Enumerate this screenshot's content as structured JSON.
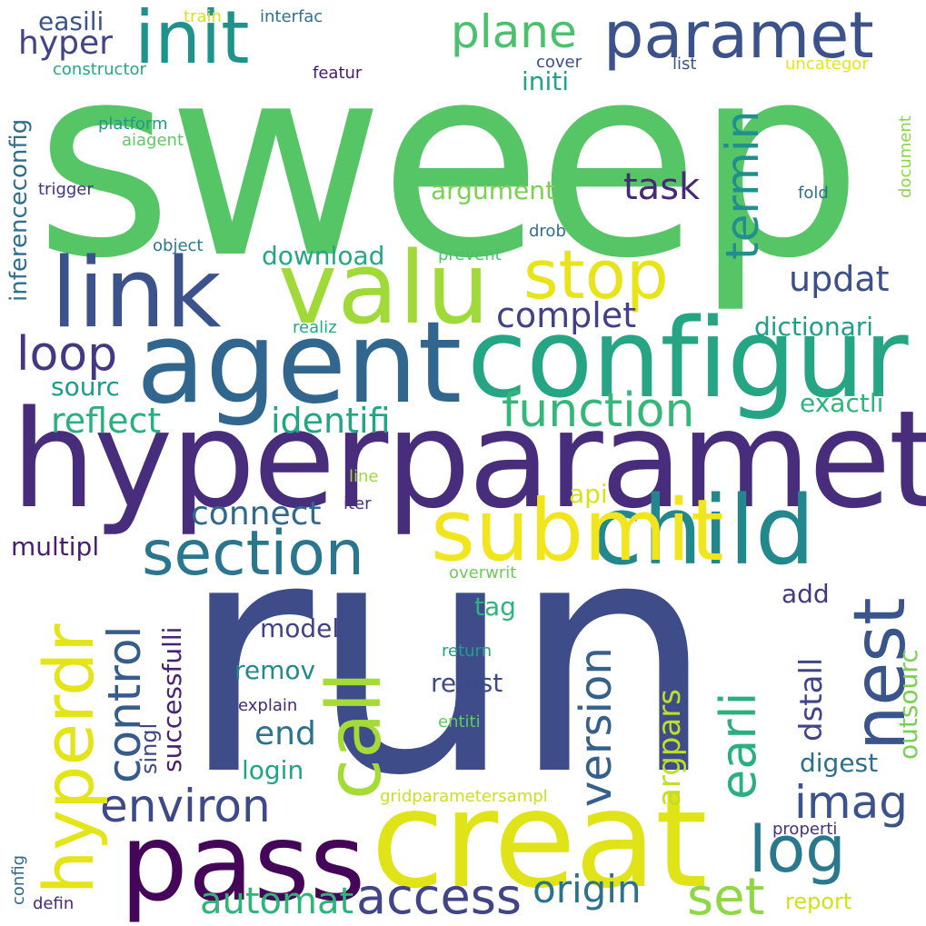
{
  "words": [
    {
      "text": "sweep",
      "color": "#56c566"
    },
    {
      "text": "run",
      "color": "#3e4d8a"
    },
    {
      "text": "hyperparamet",
      "color": "#472d7b"
    },
    {
      "text": "creat",
      "color": "#e0e318"
    },
    {
      "text": "agent",
      "color": "#31668e"
    },
    {
      "text": "configur",
      "color": "#25a584"
    },
    {
      "text": "pass",
      "color": "#450559"
    },
    {
      "text": "link",
      "color": "#3b528b"
    },
    {
      "text": "valu",
      "color": "#a0da39"
    },
    {
      "text": "child",
      "color": "#23888e"
    },
    {
      "text": "submit",
      "color": "#f1e51d"
    },
    {
      "text": "init",
      "color": "#20928c"
    },
    {
      "text": "hyperdr",
      "color": "#e5e419"
    },
    {
      "text": "call",
      "color": "#a5db36"
    },
    {
      "text": "paramet",
      "color": "#3b528b"
    },
    {
      "text": "nest",
      "color": "#3a548c"
    },
    {
      "text": "stop",
      "color": "#e8e419"
    },
    {
      "text": "section",
      "color": "#2a768e"
    },
    {
      "text": "control",
      "color": "#375b8d"
    },
    {
      "text": "log",
      "color": "#2a788e"
    },
    {
      "text": "termin",
      "color": "#21908d"
    },
    {
      "text": "access",
      "color": "#414487"
    },
    {
      "text": "imag",
      "color": "#3b528b"
    },
    {
      "text": "loop",
      "color": "#453781"
    },
    {
      "text": "environ",
      "color": "#3e4989"
    },
    {
      "text": "function",
      "color": "#35b779"
    },
    {
      "text": "earli",
      "color": "#2ab07f"
    },
    {
      "text": "plane",
      "color": "#4ac16d"
    },
    {
      "text": "version",
      "color": "#355f8d"
    },
    {
      "text": "set",
      "color": "#8fd744"
    },
    {
      "text": "task",
      "color": "#482878"
    },
    {
      "text": "origin",
      "color": "#2c728e"
    },
    {
      "text": "automat",
      "color": "#2fb47c"
    },
    {
      "text": "identifi",
      "color": "#21a685"
    },
    {
      "text": "reflect",
      "color": "#2ab07f"
    },
    {
      "text": "complet",
      "color": "#424086"
    },
    {
      "text": "updat",
      "color": "#3c4f8a"
    },
    {
      "text": "hyper",
      "color": "#414487"
    },
    {
      "text": "connect",
      "color": "#31688e"
    },
    {
      "text": "argpars",
      "color": "#bddf26"
    },
    {
      "text": "end",
      "color": "#2c728e"
    },
    {
      "text": "download",
      "color": "#22a884"
    },
    {
      "text": "argument",
      "color": "#7ad151"
    },
    {
      "text": "dstall",
      "color": "#414487"
    },
    {
      "text": "dictionari",
      "color": "#1f9e89"
    },
    {
      "text": "multipl",
      "color": "#481f70"
    },
    {
      "text": "regist",
      "color": "#3e4a89"
    },
    {
      "text": "easili",
      "color": "#3b528b"
    },
    {
      "text": "exactli",
      "color": "#2fb47c"
    },
    {
      "text": "successfulli",
      "color": "#482173"
    },
    {
      "text": "inferenceconfig",
      "color": "#2d708e"
    },
    {
      "text": "remov",
      "color": "#23898e"
    },
    {
      "text": "digest",
      "color": "#2e6f8e"
    },
    {
      "text": "sourc",
      "color": "#1e9c89"
    },
    {
      "text": "initi",
      "color": "#20a386"
    },
    {
      "text": "login",
      "color": "#20a386"
    },
    {
      "text": "model",
      "color": "#424186"
    },
    {
      "text": "tag",
      "color": "#2eb37c"
    },
    {
      "text": "api",
      "color": "#d8e219"
    },
    {
      "text": "outsourc",
      "color": "#7ad151"
    },
    {
      "text": "report",
      "color": "#d0e11c"
    },
    {
      "text": "singl",
      "color": "#3f4788"
    },
    {
      "text": "add",
      "color": "#453882"
    },
    {
      "text": "constructor",
      "color": "#22a884"
    },
    {
      "text": "platform",
      "color": "#1f9a8a"
    },
    {
      "text": "aiagent",
      "color": "#5ec962"
    },
    {
      "text": "trigger",
      "color": "#46327e"
    },
    {
      "text": "object",
      "color": "#2a788e"
    },
    {
      "text": "train",
      "color": "#d8e219"
    },
    {
      "text": "interfac",
      "color": "#2c728e"
    },
    {
      "text": "featur",
      "color": "#481a6c"
    },
    {
      "text": "cover",
      "color": "#3d4e8a"
    },
    {
      "text": "list",
      "color": "#39558c"
    },
    {
      "text": "uncategor",
      "color": "#e7e419"
    },
    {
      "text": "document",
      "color": "#8bd646"
    },
    {
      "text": "fold",
      "color": "#2d708e"
    },
    {
      "text": "drob",
      "color": "#2d708e"
    },
    {
      "text": "prevent",
      "color": "#4ac16d"
    },
    {
      "text": "realiz",
      "color": "#22a884"
    },
    {
      "text": "line",
      "color": "#a2da37"
    },
    {
      "text": "iter",
      "color": "#46307e"
    },
    {
      "text": "overwrit",
      "color": "#6ccd5a"
    },
    {
      "text": "return",
      "color": "#1fa088"
    },
    {
      "text": "explain",
      "color": "#482878"
    },
    {
      "text": "entiti",
      "color": "#5ec962"
    },
    {
      "text": "gridparametersampl",
      "color": "#c8e020"
    },
    {
      "text": "properti",
      "color": "#46327e"
    },
    {
      "text": "config",
      "color": "#31688e"
    },
    {
      "text": "defin",
      "color": "#482878"
    }
  ]
}
